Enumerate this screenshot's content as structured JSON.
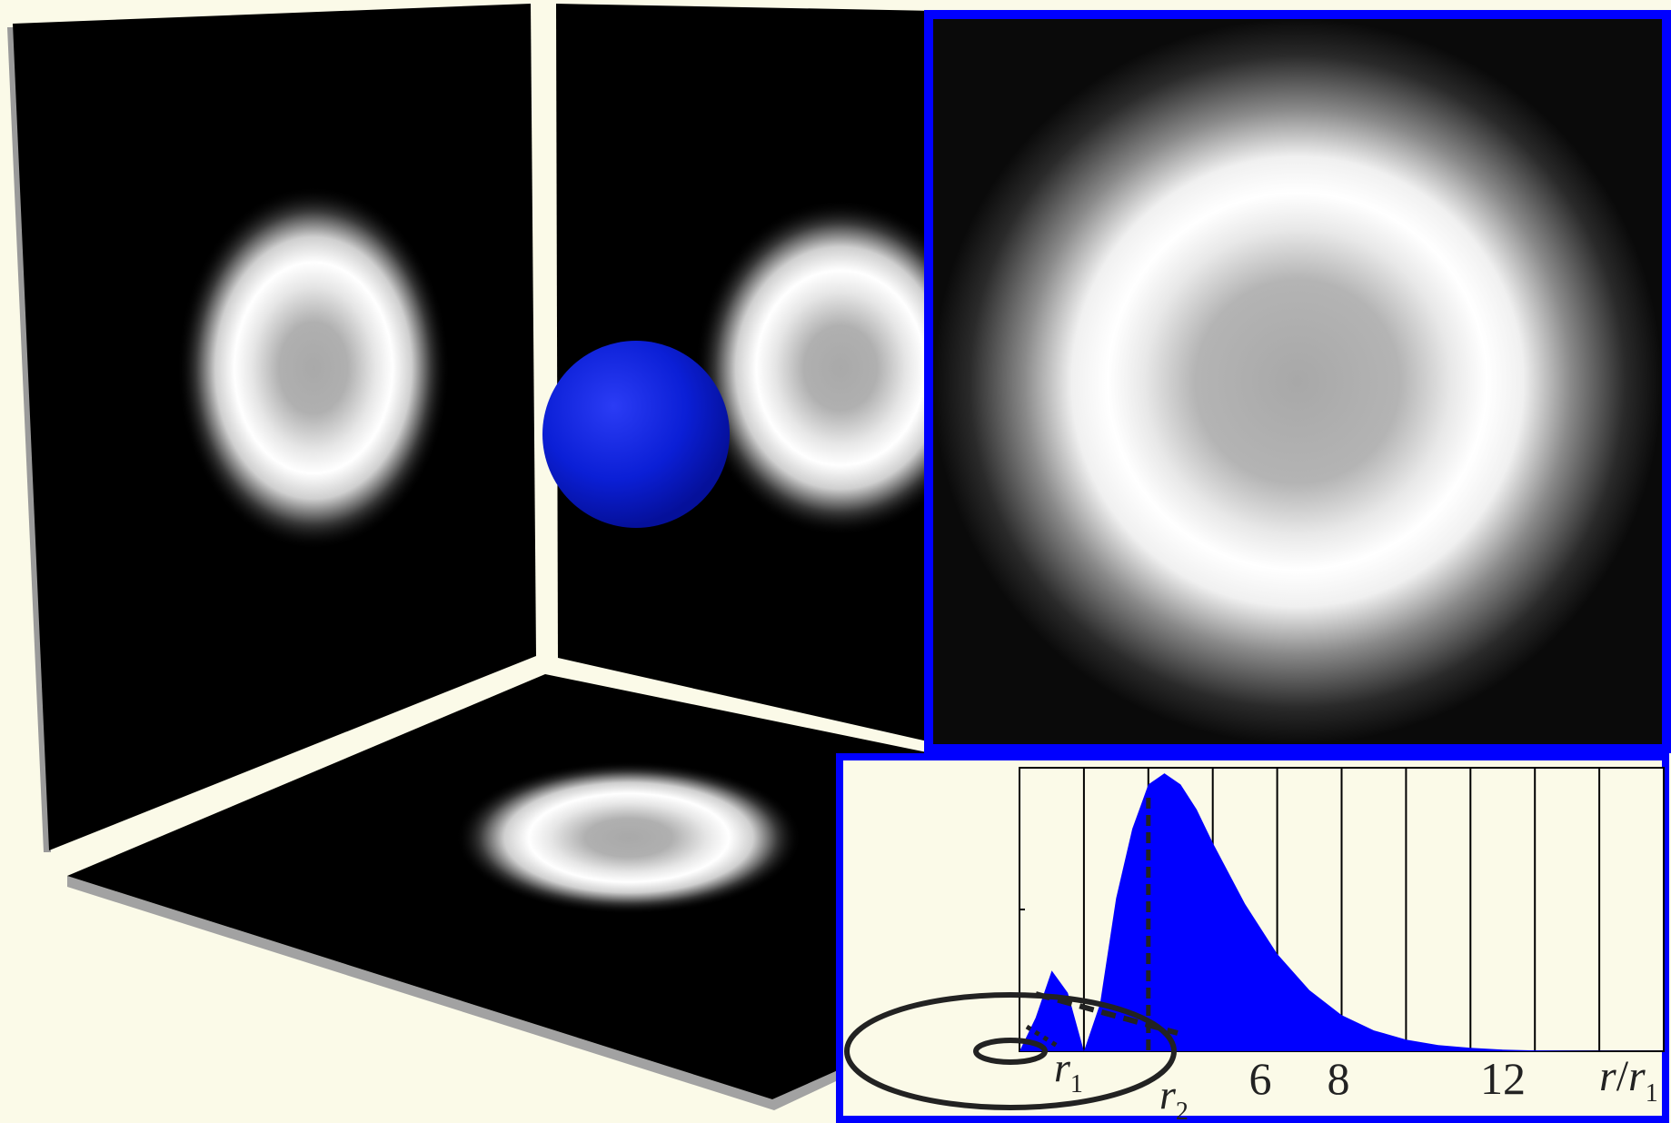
{
  "graph": {
    "tick_labels": [
      "6",
      "8",
      "12"
    ],
    "r1_main": "r",
    "r1_sub": "1",
    "r2_main": "r",
    "r2_sub": "2",
    "axis_num": "r",
    "axis_den": "r",
    "axis_den_sub": "1"
  },
  "colors": {
    "background": "#fbfae8",
    "accent_blue": "#0000ff",
    "sphere_blue": "#0a1fd8",
    "panel": "#000000",
    "frame_cream": "#f7f5dc"
  },
  "chart_data": {
    "type": "area",
    "series": [
      {
        "x": [
          0,
          0.5,
          1.0,
          1.5,
          2.0,
          2.5,
          3.0,
          3.5,
          4.0,
          4.5,
          5.0,
          5.5,
          6.0,
          7.0,
          8.0,
          9.0,
          10.0,
          11.0,
          12.0,
          13.0,
          14.0,
          15.0,
          16.0,
          17.0,
          18.0,
          19.0,
          20.0
        ],
        "y": [
          0,
          0.12,
          0.29,
          0.21,
          0,
          0.17,
          0.55,
          0.8,
          0.96,
          1.0,
          0.96,
          0.87,
          0.75,
          0.53,
          0.35,
          0.22,
          0.13,
          0.075,
          0.042,
          0.022,
          0.012,
          0.006,
          0.003,
          0.0015,
          0.0007,
          0.0003,
          0.0001
        ]
      }
    ],
    "xlim": [
      0,
      20
    ],
    "ylim": [
      0,
      1.02
    ],
    "xticks": [
      6,
      8,
      12
    ],
    "grid": true,
    "r1_marker": 2,
    "r2_marker": 4
  }
}
